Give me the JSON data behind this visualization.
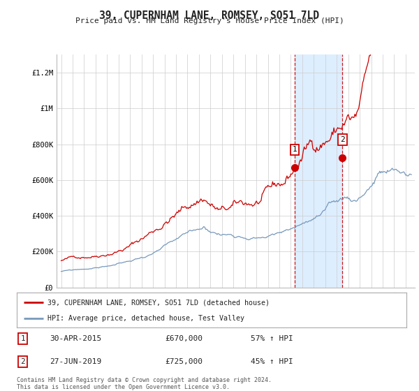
{
  "title": "39, CUPERNHAM LANE, ROMSEY, SO51 7LD",
  "subtitle": "Price paid vs. HM Land Registry's House Price Index (HPI)",
  "ylabel_ticks": [
    "£0",
    "£200K",
    "£400K",
    "£600K",
    "£800K",
    "£1M",
    "£1.2M"
  ],
  "ytick_values": [
    0,
    200000,
    400000,
    600000,
    800000,
    1000000,
    1200000
  ],
  "ylim": [
    0,
    1300000
  ],
  "xlim_start": 1994.6,
  "xlim_end": 2025.8,
  "sale1_x": 2015.33,
  "sale1_y": 670000,
  "sale1_label": "1",
  "sale1_date": "30-APR-2015",
  "sale1_price": "£670,000",
  "sale1_pct": "57% ↑ HPI",
  "sale2_x": 2019.5,
  "sale2_y": 725000,
  "sale2_label": "2",
  "sale2_date": "27-JUN-2019",
  "sale2_price": "£725,000",
  "sale2_pct": "45% ↑ HPI",
  "red_line_color": "#cc0000",
  "blue_line_color": "#7799bb",
  "shaded_color": "#ddeeff",
  "vline_color": "#cc0000",
  "background_color": "#ffffff",
  "legend1_label": "39, CUPERNHAM LANE, ROMSEY, SO51 7LD (detached house)",
  "legend2_label": "HPI: Average price, detached house, Test Valley",
  "footer": "Contains HM Land Registry data © Crown copyright and database right 2024.\nThis data is licensed under the Open Government Licence v3.0."
}
